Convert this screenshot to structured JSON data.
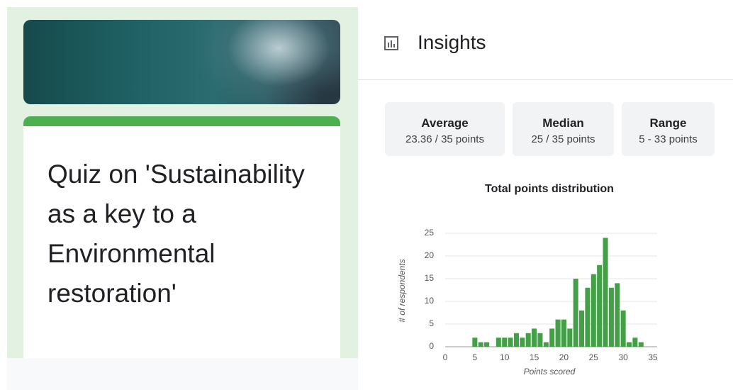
{
  "form": {
    "title": "Quiz on 'Sustainability as a key to a Environmental restoration'"
  },
  "insights": {
    "title": "Insights",
    "stats": [
      {
        "label": "Average",
        "value": "23.36 / 35 points"
      },
      {
        "label": "Median",
        "value": "25 / 35 points"
      },
      {
        "label": "Range",
        "value": "5 - 33 points"
      }
    ]
  },
  "chart_data": {
    "type": "bar",
    "title": "Total points distribution",
    "x_label": "Points scored",
    "y_label": "# of respondents",
    "x": [
      5,
      6,
      7,
      9,
      10,
      11,
      12,
      13,
      14,
      15,
      16,
      17,
      18,
      19,
      20,
      21,
      22,
      23,
      24,
      25,
      26,
      27,
      28,
      29,
      30,
      31,
      32,
      33
    ],
    "values": [
      2,
      1,
      1,
      2,
      2,
      2,
      3,
      2,
      3,
      4,
      3,
      1,
      4,
      6,
      6,
      4,
      15,
      8,
      13,
      16,
      18,
      24,
      13,
      14,
      8,
      1,
      2,
      1
    ],
    "color": "#43a047",
    "xlim": [
      0,
      35
    ],
    "xticks": [
      0,
      5,
      10,
      15,
      20,
      25,
      30,
      35
    ],
    "ylim": [
      0,
      25
    ],
    "yticks": [
      0,
      5,
      10,
      15,
      20,
      25
    ],
    "grid": true
  }
}
